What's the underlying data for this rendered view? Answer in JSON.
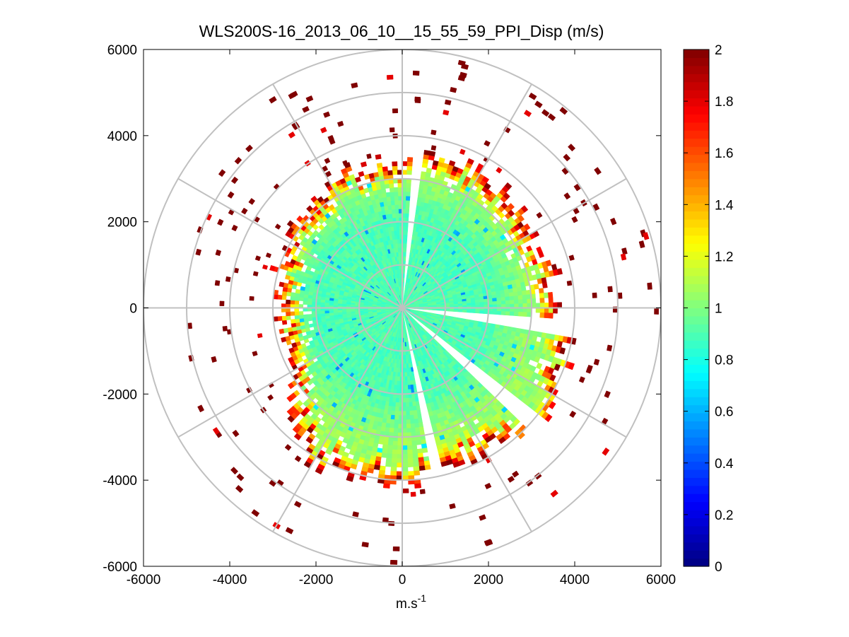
{
  "chart_data": {
    "type": "heatmap",
    "subtype": "polar PPI scan (sectors over polar grid)",
    "title": "WLS200S-16_2013_06_10__15_55_59_PPI_Disp (m/s)",
    "xlabel": "m.s",
    "xlabel_superscript": "-1",
    "ylabel": "",
    "xlim": [
      -6000,
      6000
    ],
    "ylim": [
      -6000,
      6000
    ],
    "xticks": [
      "-6000",
      "-4000",
      "-2000",
      "0",
      "2000",
      "4000",
      "6000"
    ],
    "yticks": [
      "6000",
      "4000",
      "2000",
      "0",
      "-2000",
      "-4000",
      "-6000"
    ],
    "polar_grid": {
      "ring_radii": [
        1000,
        2000,
        3000,
        4000,
        5000,
        6000
      ],
      "spoke_angles_deg": [
        0,
        30,
        60,
        90,
        120,
        150,
        180,
        210,
        240,
        270,
        300,
        330
      ]
    },
    "colorbar": {
      "colormap": "jet",
      "clim": [
        0,
        2
      ],
      "ticks": [
        "0",
        "0.2",
        "0.4",
        "0.6",
        "0.8",
        "1",
        "1.2",
        "1.4",
        "1.6",
        "1.8",
        "2"
      ]
    },
    "wind_speed_field_approx": {
      "range_bin_m": 100,
      "azimuth_step_deg": 2,
      "inner_core_value": 0.9,
      "inner_core_radius_m": 2000,
      "mid_band_value": 1.05,
      "mid_band_radius_m": 3000,
      "outer_edge_value": 2.0,
      "max_coverage_radius_by_azimuth_m": [
        {
          "azimuth_deg": 0,
          "radius_m": 3300
        },
        {
          "azimuth_deg": 30,
          "radius_m": 3700
        },
        {
          "azimuth_deg": 60,
          "radius_m": 3300
        },
        {
          "azimuth_deg": 90,
          "radius_m": 3700
        },
        {
          "azimuth_deg": 120,
          "radius_m": 4200
        },
        {
          "azimuth_deg": 150,
          "radius_m": 3700
        },
        {
          "azimuth_deg": 180,
          "radius_m": 4000
        },
        {
          "azimuth_deg": 210,
          "radius_m": 4000
        },
        {
          "azimuth_deg": 240,
          "radius_m": 2800
        },
        {
          "azimuth_deg": 270,
          "radius_m": 2800
        },
        {
          "azimuth_deg": 300,
          "radius_m": 3000
        },
        {
          "azimuth_deg": 330,
          "radius_m": 3300
        }
      ],
      "gaps_azimuth_deg": [
        {
          "from": 4,
          "to": 8
        },
        {
          "from": 94,
          "to": 100
        },
        {
          "from": 128,
          "to": 134
        },
        {
          "from": 166,
          "to": 170
        }
      ]
    }
  }
}
